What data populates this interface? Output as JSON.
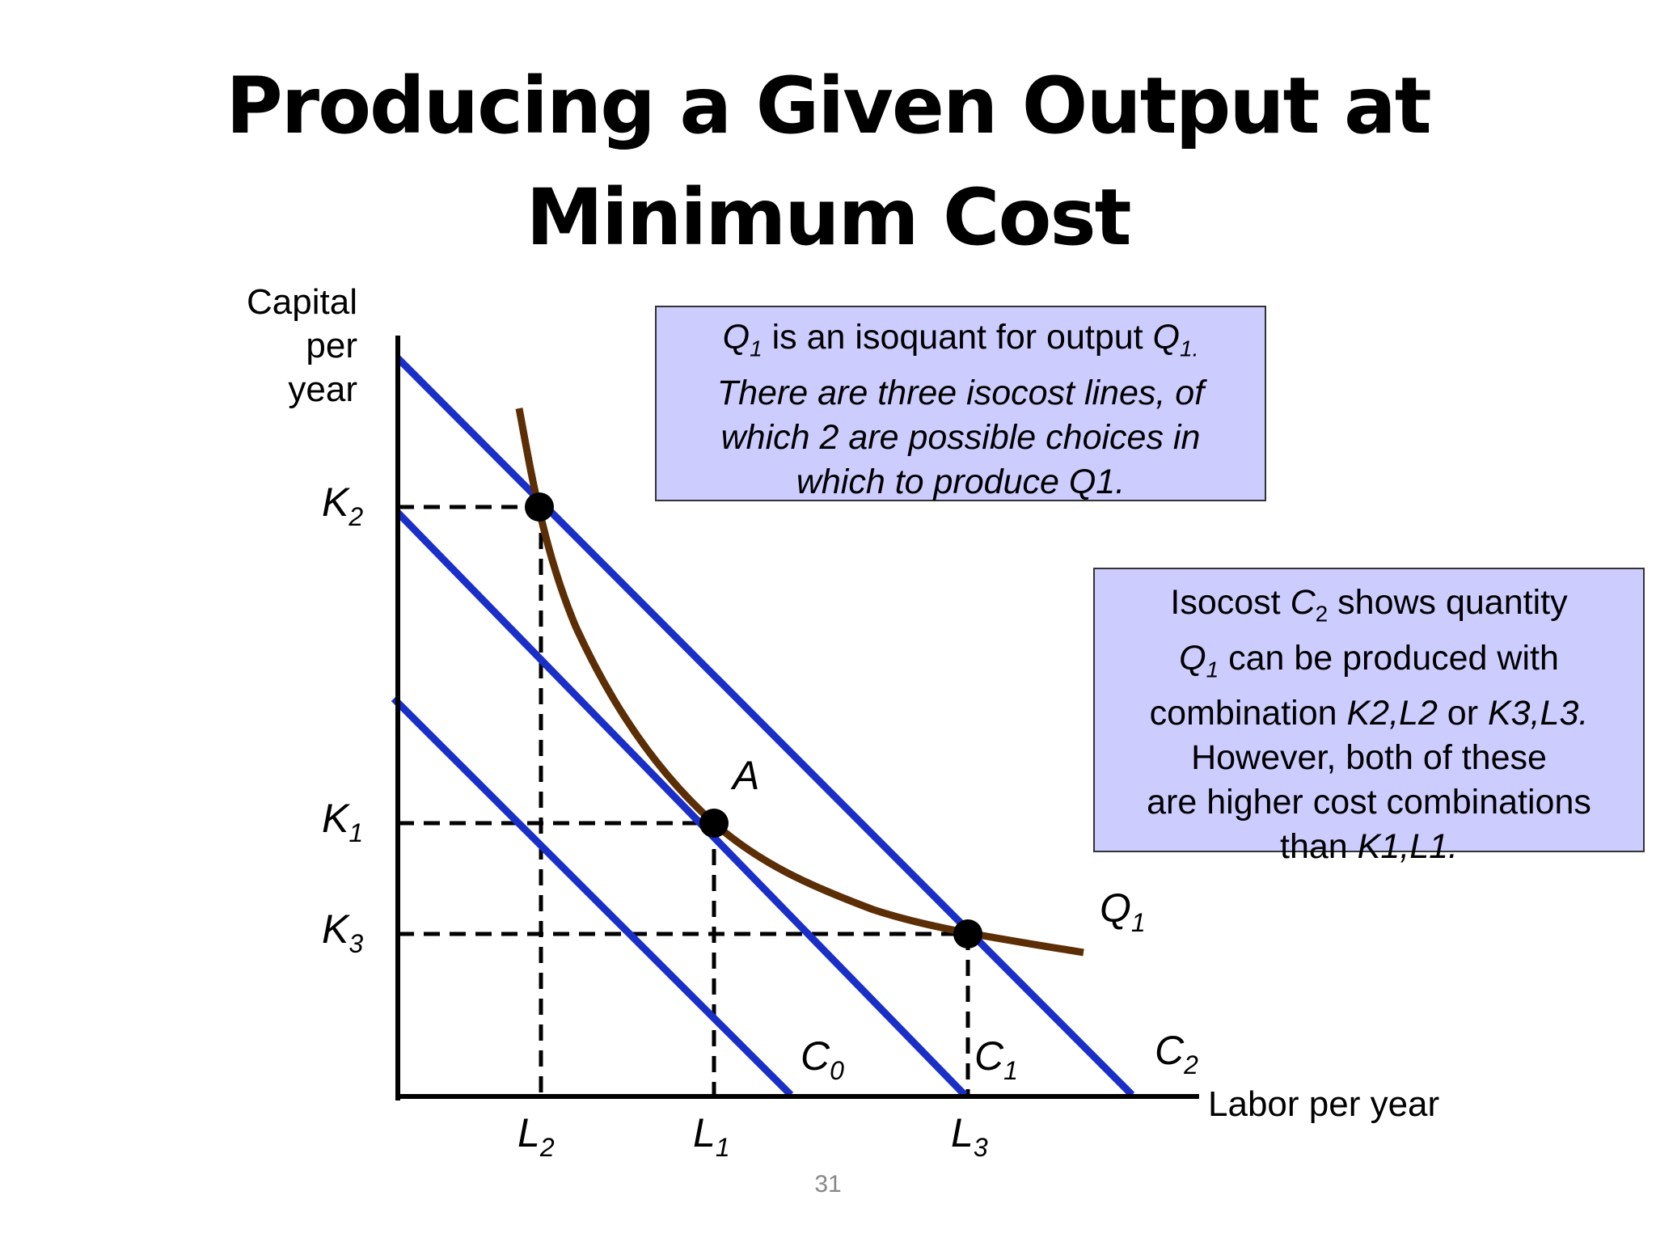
{
  "slide": {
    "title_line1": "Producing a Given Output at",
    "title_line2": "Minimum Cost",
    "page_number": "31"
  },
  "axes": {
    "y_label_line1": "Capital",
    "y_label_line2": "per",
    "y_label_line3": "year",
    "x_label": "Labor per year"
  },
  "labels": {
    "K2": "K",
    "K2_sub": "2",
    "K1": "K",
    "K1_sub": "1",
    "K3": "K",
    "K3_sub": "3",
    "L2": "L",
    "L2_sub": "2",
    "L1": "L",
    "L1_sub": "1",
    "L3": "L",
    "L3_sub": "3",
    "C0": "C",
    "C0_sub": "0",
    "C1": "C",
    "C1_sub": "1",
    "C2": "C",
    "C2_sub": "2",
    "Q1": "Q",
    "Q1_sub": "1",
    "A": "A"
  },
  "notes": {
    "note1": {
      "q": "Q",
      "q_sub": "1",
      "text_a": " is an isoquant for output ",
      "q2": "Q",
      "q2_sub": "1.",
      "line2": "There are three isocost lines, of",
      "line3": "which 2 are possible choices in",
      "line4": "which to produce Q1."
    },
    "note2": {
      "a": "Isocost ",
      "c": "C",
      "c_sub": "2",
      "b": " shows quantity",
      "q": "Q",
      "q_sub": "1",
      "line2_rest": " can be produced with",
      "line3_a": "combination ",
      "line3_k2l2": "K2,L2",
      "line3_or": " or ",
      "line3_k3l3": "K3,L3.",
      "line4": "However, both of these",
      "line5": "are higher cost combinations",
      "line6_a": "than ",
      "line6_k1l1": "K1,L1."
    }
  },
  "colors": {
    "isocost": "#1a2fc8",
    "isoquant": "#5c2e06",
    "axis": "#000000",
    "note_bg": "#ccccff"
  }
}
